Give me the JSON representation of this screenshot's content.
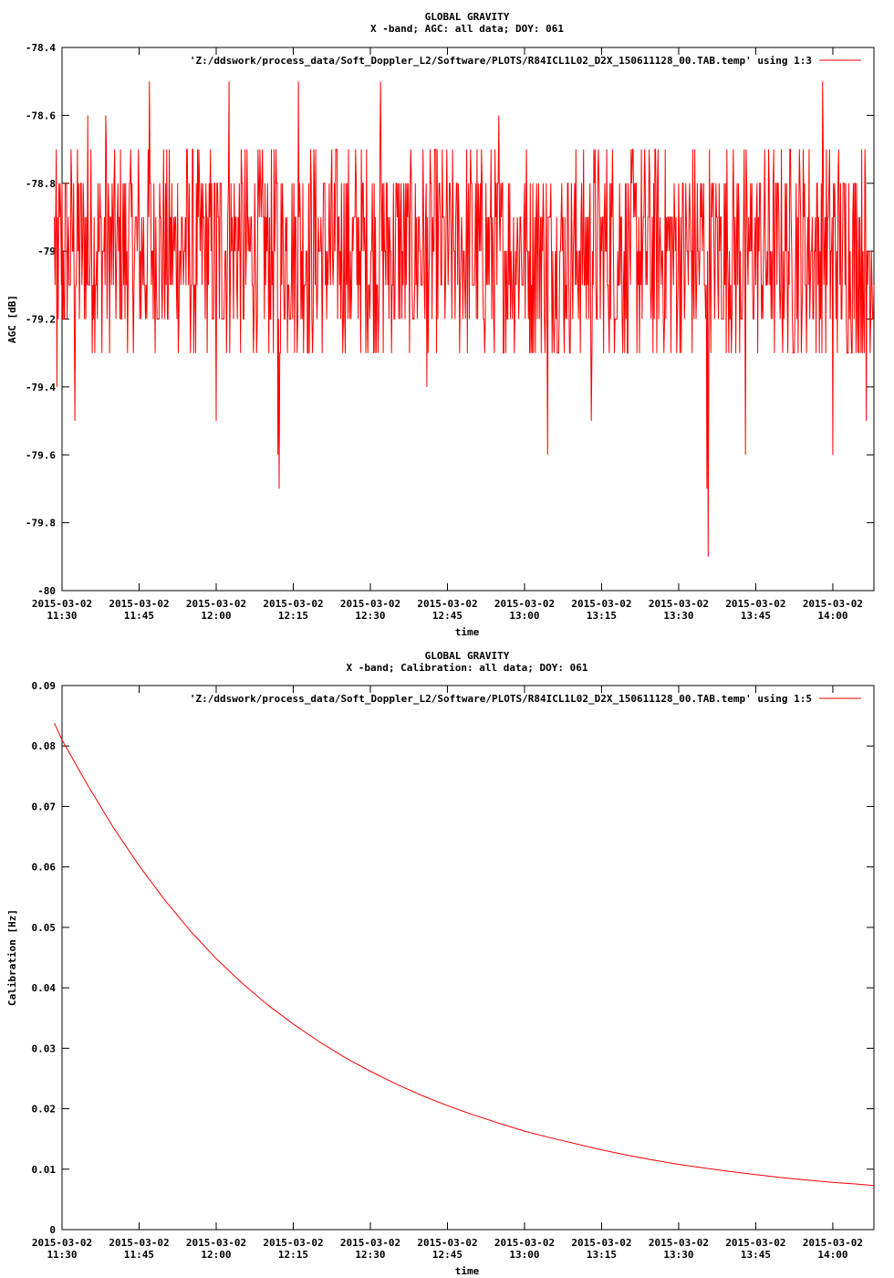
{
  "chart_data": [
    {
      "type": "line",
      "title": "GLOBAL GRAVITY",
      "subtitle": "X -band; AGC: all data; DOY: 061",
      "xlabel": "time",
      "ylabel": "AGC [dB]",
      "ylim": [
        -80,
        -78.4
      ],
      "yticks": [
        -80,
        -79.8,
        -79.6,
        -79.4,
        -79.2,
        -79,
        -78.8,
        -78.6,
        -78.4
      ],
      "ytick_labels": [
        "-80",
        "-79.8",
        "-79.6",
        "-79.4",
        "-79.2",
        "-79",
        "-78.8",
        "-78.6",
        "-78.4"
      ],
      "xlim_minutes": [
        690,
        848
      ],
      "xticks_minutes": [
        690,
        705,
        720,
        735,
        750,
        765,
        780,
        795,
        810,
        825,
        840
      ],
      "xtick_labels": [
        [
          "2015-03-02",
          "11:30"
        ],
        [
          "2015-03-02",
          "11:45"
        ],
        [
          "2015-03-02",
          "12:00"
        ],
        [
          "2015-03-02",
          "12:15"
        ],
        [
          "2015-03-02",
          "12:30"
        ],
        [
          "2015-03-02",
          "12:45"
        ],
        [
          "2015-03-02",
          "13:00"
        ],
        [
          "2015-03-02",
          "13:15"
        ],
        [
          "2015-03-02",
          "13:30"
        ],
        [
          "2015-03-02",
          "13:45"
        ],
        [
          "2015-03-02",
          "14:00"
        ]
      ],
      "grid": false,
      "legend_position": "top-right",
      "series": [
        {
          "name": "'Z:/ddswork/process_data/Soft_Doppler_L2/Software/PLOTS/R84ICL1L02_D2X_150611128_00.TAB.temp' using 1:3",
          "color": "#ff0000",
          "x_start": 688.5,
          "x_end": 848,
          "sample_step_minutes": 0.125,
          "baseline": -79.0,
          "spread": 0.3,
          "step": 0.1,
          "spikes": [
            [
              689.0,
              -79.4
            ],
            [
              692.5,
              -79.5
            ],
            [
              695.0,
              -78.6
            ],
            [
              698.5,
              -78.6
            ],
            [
              707.0,
              -78.5
            ],
            [
              716.0,
              -79.3
            ],
            [
              720.0,
              -79.5
            ],
            [
              722.5,
              -78.5
            ],
            [
              732.0,
              -79.6
            ],
            [
              732.2,
              -79.7
            ],
            [
              736.0,
              -78.5
            ],
            [
              752.0,
              -78.5
            ],
            [
              761.0,
              -79.4
            ],
            [
              775.0,
              -78.6
            ],
            [
              784.5,
              -79.6
            ],
            [
              793.0,
              -79.5
            ],
            [
              815.5,
              -79.7
            ],
            [
              815.8,
              -79.9
            ],
            [
              823.0,
              -79.6
            ],
            [
              838.0,
              -78.5
            ],
            [
              840.0,
              -79.6
            ],
            [
              846.5,
              -79.5
            ]
          ]
        }
      ]
    },
    {
      "type": "line",
      "title": "GLOBAL GRAVITY",
      "subtitle": "X -band; Calibration: all data; DOY: 061",
      "xlabel": "time",
      "ylabel": "Calibration [Hz]",
      "ylim": [
        0,
        0.09
      ],
      "yticks": [
        0,
        0.01,
        0.02,
        0.03,
        0.04,
        0.05,
        0.06,
        0.07,
        0.08,
        0.09
      ],
      "ytick_labels": [
        "0",
        "0.01",
        "0.02",
        "0.03",
        "0.04",
        "0.05",
        "0.06",
        "0.07",
        "0.08",
        "0.09"
      ],
      "xlim_minutes": [
        690,
        848
      ],
      "xticks_minutes": [
        690,
        705,
        720,
        735,
        750,
        765,
        780,
        795,
        810,
        825,
        840
      ],
      "xtick_labels": [
        [
          "2015-03-02",
          "11:30"
        ],
        [
          "2015-03-02",
          "11:45"
        ],
        [
          "2015-03-02",
          "12:00"
        ],
        [
          "2015-03-02",
          "12:15"
        ],
        [
          "2015-03-02",
          "12:30"
        ],
        [
          "2015-03-02",
          "12:45"
        ],
        [
          "2015-03-02",
          "13:00"
        ],
        [
          "2015-03-02",
          "13:15"
        ],
        [
          "2015-03-02",
          "13:30"
        ],
        [
          "2015-03-02",
          "13:45"
        ],
        [
          "2015-03-02",
          "14:00"
        ]
      ],
      "grid": false,
      "legend_position": "top-right",
      "series": [
        {
          "name": "'Z:/ddswork/process_data/Soft_Doppler_L2/Software/PLOTS/R84ICL1L02_D2X_150611128_00.TAB.temp' using 1:5",
          "color": "#ff0000",
          "points": [
            [
              688.5,
              0.0838
            ],
            [
              690,
              0.081
            ],
            [
              695,
              0.0735
            ],
            [
              700,
              0.0665
            ],
            [
              705,
              0.0602
            ],
            [
              710,
              0.0545
            ],
            [
              715,
              0.0494
            ],
            [
              720,
              0.0448
            ],
            [
              725,
              0.0408
            ],
            [
              730,
              0.0372
            ],
            [
              735,
              0.034
            ],
            [
              740,
              0.0311
            ],
            [
              745,
              0.0285
            ],
            [
              750,
              0.0262
            ],
            [
              755,
              0.0241
            ],
            [
              760,
              0.0222
            ],
            [
              765,
              0.0205
            ],
            [
              770,
              0.019
            ],
            [
              775,
              0.0176
            ],
            [
              780,
              0.0163
            ],
            [
              785,
              0.0152
            ],
            [
              790,
              0.0142
            ],
            [
              795,
              0.0132
            ],
            [
              800,
              0.0123
            ],
            [
              805,
              0.0115
            ],
            [
              810,
              0.0108
            ],
            [
              815,
              0.0102
            ],
            [
              820,
              0.0096
            ],
            [
              825,
              0.0091
            ],
            [
              830,
              0.0086
            ],
            [
              835,
              0.0082
            ],
            [
              840,
              0.0078
            ],
            [
              845,
              0.0075
            ],
            [
              848,
              0.0073
            ]
          ]
        }
      ]
    }
  ]
}
